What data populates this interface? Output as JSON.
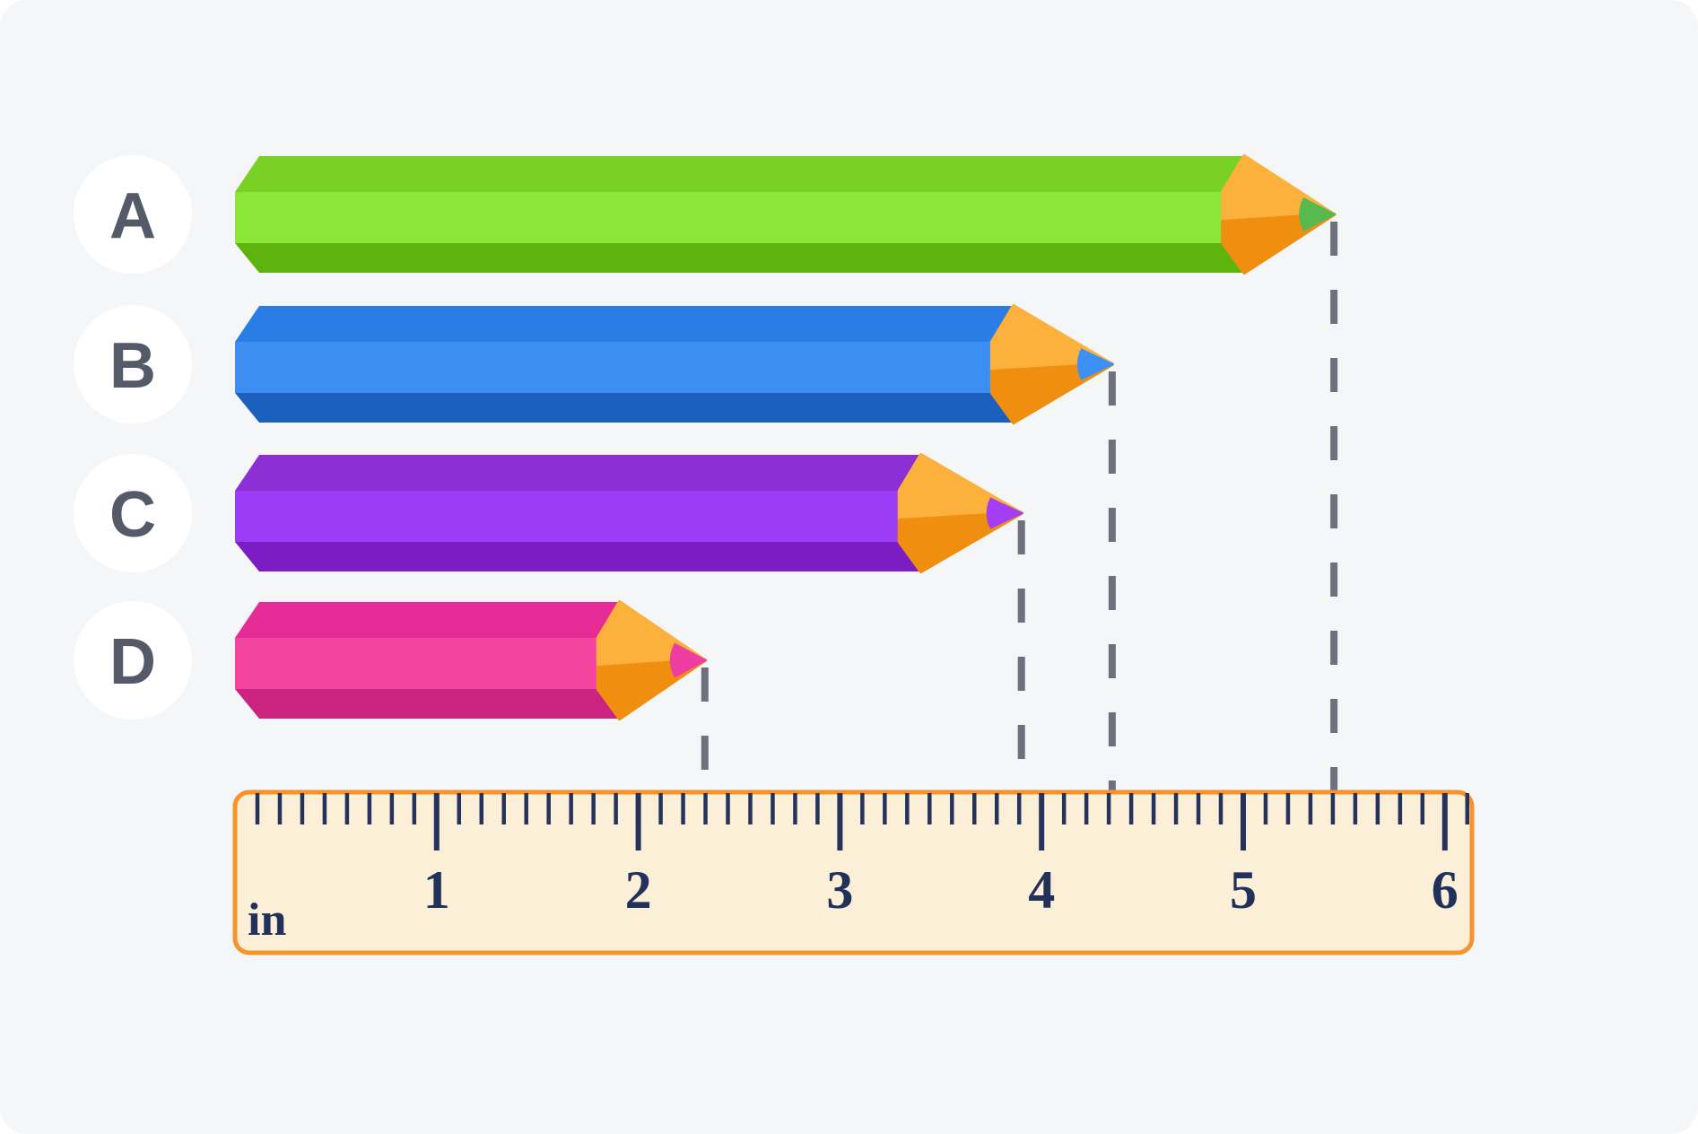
{
  "scene": {
    "background_color": "#f5f6f8",
    "guide_line_color": "#6f6f7d",
    "label_circle_fill": "#ffffff",
    "label_letter_color": "#555a68"
  },
  "chart_data": {
    "type": "pictograph-measurement",
    "title": "",
    "description": "Four pencils labeled A-D aligned at a common left edge, with dashed guide lines dropping from each pencil tip to an inch ruler below",
    "unit": "inches",
    "ruler": {
      "unit_label": "in",
      "min": 0,
      "max": 6,
      "number_labels": [
        "1",
        "2",
        "3",
        "4",
        "5",
        "6"
      ],
      "minor_ticks_per_inch": 9,
      "face_color": "#fcefd8",
      "border_color": "#f6932c",
      "tick_color": "#25335a"
    },
    "wood_colors": {
      "upper": "#fcb13c",
      "lower": "#f08e10"
    },
    "pencils": [
      {
        "label": "A",
        "length_in": 5.45,
        "colors": {
          "top": "#79d126",
          "mid": "#8be637",
          "bottom": "#5eb40d",
          "lead": "#57b94e"
        }
      },
      {
        "label": "B",
        "length_in": 4.35,
        "colors": {
          "top": "#2a7de5",
          "mid": "#3c8ef3",
          "bottom": "#1b60bd",
          "lead": "#3f90f5"
        }
      },
      {
        "label": "C",
        "length_in": 3.9,
        "colors": {
          "top": "#8c2fd4",
          "mid": "#9c3cf6",
          "bottom": "#7b1cc5",
          "lead": "#a43ef2"
        }
      },
      {
        "label": "D",
        "length_in": 2.33,
        "colors": {
          "top": "#e52b95",
          "mid": "#f3459f",
          "bottom": "#cb2380",
          "lead": "#ee3da0"
        }
      }
    ]
  }
}
